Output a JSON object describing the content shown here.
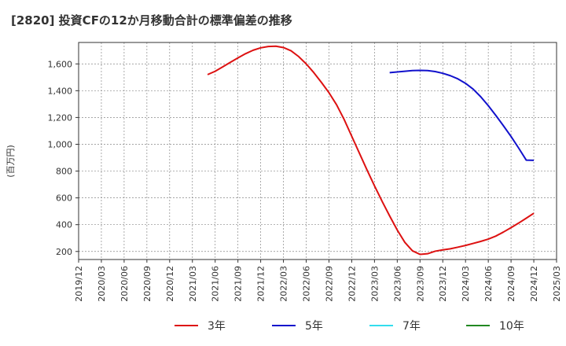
{
  "chart_data": {
    "type": "line",
    "title": "[2820]  投資CFの12か月移動合計の標準偏差の推移",
    "ylabel": "(百万円)",
    "xlabel": "",
    "ylim": [
      140,
      1760
    ],
    "yticks": [
      200,
      400,
      600,
      800,
      1000,
      1200,
      1400,
      1600
    ],
    "ytick_labels": [
      "200",
      "400",
      "600",
      "800",
      "1,000",
      "1,200",
      "1,400",
      "1,600"
    ],
    "xticks": [
      "2019/12",
      "2020/03",
      "2020/06",
      "2020/09",
      "2020/12",
      "2021/03",
      "2021/06",
      "2021/09",
      "2021/12",
      "2022/03",
      "2022/06",
      "2022/09",
      "2022/12",
      "2023/03",
      "2023/06",
      "2023/09",
      "2023/12",
      "2024/03",
      "2024/06",
      "2024/09",
      "2024/12",
      "2025/03"
    ],
    "grid": true,
    "legend_position": "bottom",
    "series": [
      {
        "name": "3年",
        "color": "#dd1111",
        "points": [
          [
            "2021/05",
            1520
          ],
          [
            "2021/06",
            1545
          ],
          [
            "2021/07",
            1578
          ],
          [
            "2021/08",
            1612
          ],
          [
            "2021/09",
            1645
          ],
          [
            "2021/10",
            1676
          ],
          [
            "2021/11",
            1702
          ],
          [
            "2021/12",
            1720
          ],
          [
            "2022/01",
            1730
          ],
          [
            "2022/02",
            1732
          ],
          [
            "2022/03",
            1722
          ],
          [
            "2022/04",
            1698
          ],
          [
            "2022/05",
            1655
          ],
          [
            "2022/06",
            1600
          ],
          [
            "2022/07",
            1535
          ],
          [
            "2022/08",
            1462
          ],
          [
            "2022/09",
            1385
          ],
          [
            "2022/10",
            1295
          ],
          [
            "2022/11",
            1185
          ],
          [
            "2022/12",
            1060
          ],
          [
            "2023/01",
            935
          ],
          [
            "2023/02",
            810
          ],
          [
            "2023/03",
            690
          ],
          [
            "2023/04",
            575
          ],
          [
            "2023/05",
            465
          ],
          [
            "2023/06",
            360
          ],
          [
            "2023/07",
            268
          ],
          [
            "2023/08",
            205
          ],
          [
            "2023/09",
            178
          ],
          [
            "2023/10",
            183
          ],
          [
            "2023/11",
            202
          ],
          [
            "2023/12",
            212
          ],
          [
            "2024/01",
            220
          ],
          [
            "2024/02",
            232
          ],
          [
            "2024/03",
            245
          ],
          [
            "2024/04",
            260
          ],
          [
            "2024/05",
            275
          ],
          [
            "2024/06",
            292
          ],
          [
            "2024/07",
            315
          ],
          [
            "2024/08",
            345
          ],
          [
            "2024/09",
            378
          ],
          [
            "2024/10",
            412
          ],
          [
            "2024/11",
            448
          ],
          [
            "2024/12",
            485
          ]
        ]
      },
      {
        "name": "5年",
        "color": "#1111cc",
        "points": [
          [
            "2023/05",
            1535
          ],
          [
            "2023/06",
            1540
          ],
          [
            "2023/07",
            1545
          ],
          [
            "2023/08",
            1550
          ],
          [
            "2023/09",
            1552
          ],
          [
            "2023/10",
            1550
          ],
          [
            "2023/11",
            1543
          ],
          [
            "2023/12",
            1530
          ],
          [
            "2024/01",
            1512
          ],
          [
            "2024/02",
            1488
          ],
          [
            "2024/03",
            1455
          ],
          [
            "2024/04",
            1412
          ],
          [
            "2024/05",
            1355
          ],
          [
            "2024/06",
            1288
          ],
          [
            "2024/07",
            1215
          ],
          [
            "2024/08",
            1138
          ],
          [
            "2024/09",
            1058
          ],
          [
            "2024/10",
            972
          ],
          [
            "2024/11",
            882
          ],
          [
            "2024/12",
            880
          ]
        ]
      },
      {
        "name": "7年",
        "color": "#33ddee",
        "points": []
      },
      {
        "name": "10年",
        "color": "#228822",
        "points": []
      }
    ]
  }
}
